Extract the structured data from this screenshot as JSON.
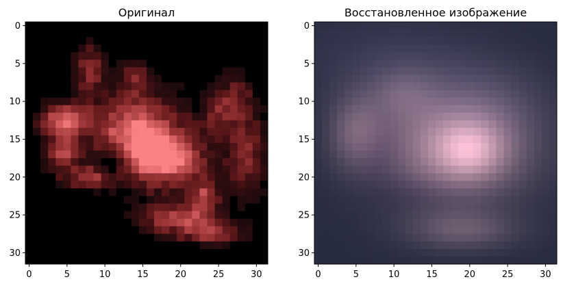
{
  "figure": {
    "background": "#ffffff",
    "axis_color": "#000000"
  },
  "chart_data": [
    {
      "type": "heatmap",
      "title": "Оригинал",
      "xlabel": "",
      "ylabel": "",
      "xlim": [
        -0.5,
        31.5
      ],
      "ylim": [
        31.5,
        -0.5
      ],
      "xticks": [
        0,
        5,
        10,
        15,
        20,
        25,
        30
      ],
      "yticks": [
        0,
        5,
        10,
        15,
        20,
        25,
        30
      ],
      "xtick_labels": [
        "0",
        "5",
        "10",
        "15",
        "20",
        "25",
        "30"
      ],
      "ytick_labels": [
        "0",
        "5",
        "10",
        "15",
        "20",
        "25",
        "30"
      ],
      "grid": false,
      "image_size": [
        32,
        32
      ],
      "content": "RGB image: pinkish-red crab-like shape on a black background",
      "dominant_colors": [
        "#000000",
        "#e87a78",
        "#c45a5c",
        "#5a2a2c",
        "#f49a96"
      ]
    },
    {
      "type": "heatmap",
      "title": "Восстановленное изображение",
      "xlabel": "",
      "ylabel": "",
      "xlim": [
        -0.5,
        31.5
      ],
      "ylim": [
        31.5,
        -0.5
      ],
      "xticks": [
        0,
        5,
        10,
        15,
        20,
        25,
        30
      ],
      "yticks": [
        0,
        5,
        10,
        15,
        20,
        25,
        30
      ],
      "xtick_labels": [
        "0",
        "5",
        "10",
        "15",
        "20",
        "25",
        "30"
      ],
      "ytick_labels": [
        "0",
        "5",
        "10",
        "15",
        "20",
        "25",
        "30"
      ],
      "grid": false,
      "image_size": [
        32,
        32
      ],
      "content": "Blurry RGB reconstruction: dark blue-grey background with a faint pinkish blob",
      "dominant_colors": [
        "#2a2f45",
        "#3c3d55",
        "#6e5a6e",
        "#a88690",
        "#d8b8b8"
      ]
    }
  ]
}
